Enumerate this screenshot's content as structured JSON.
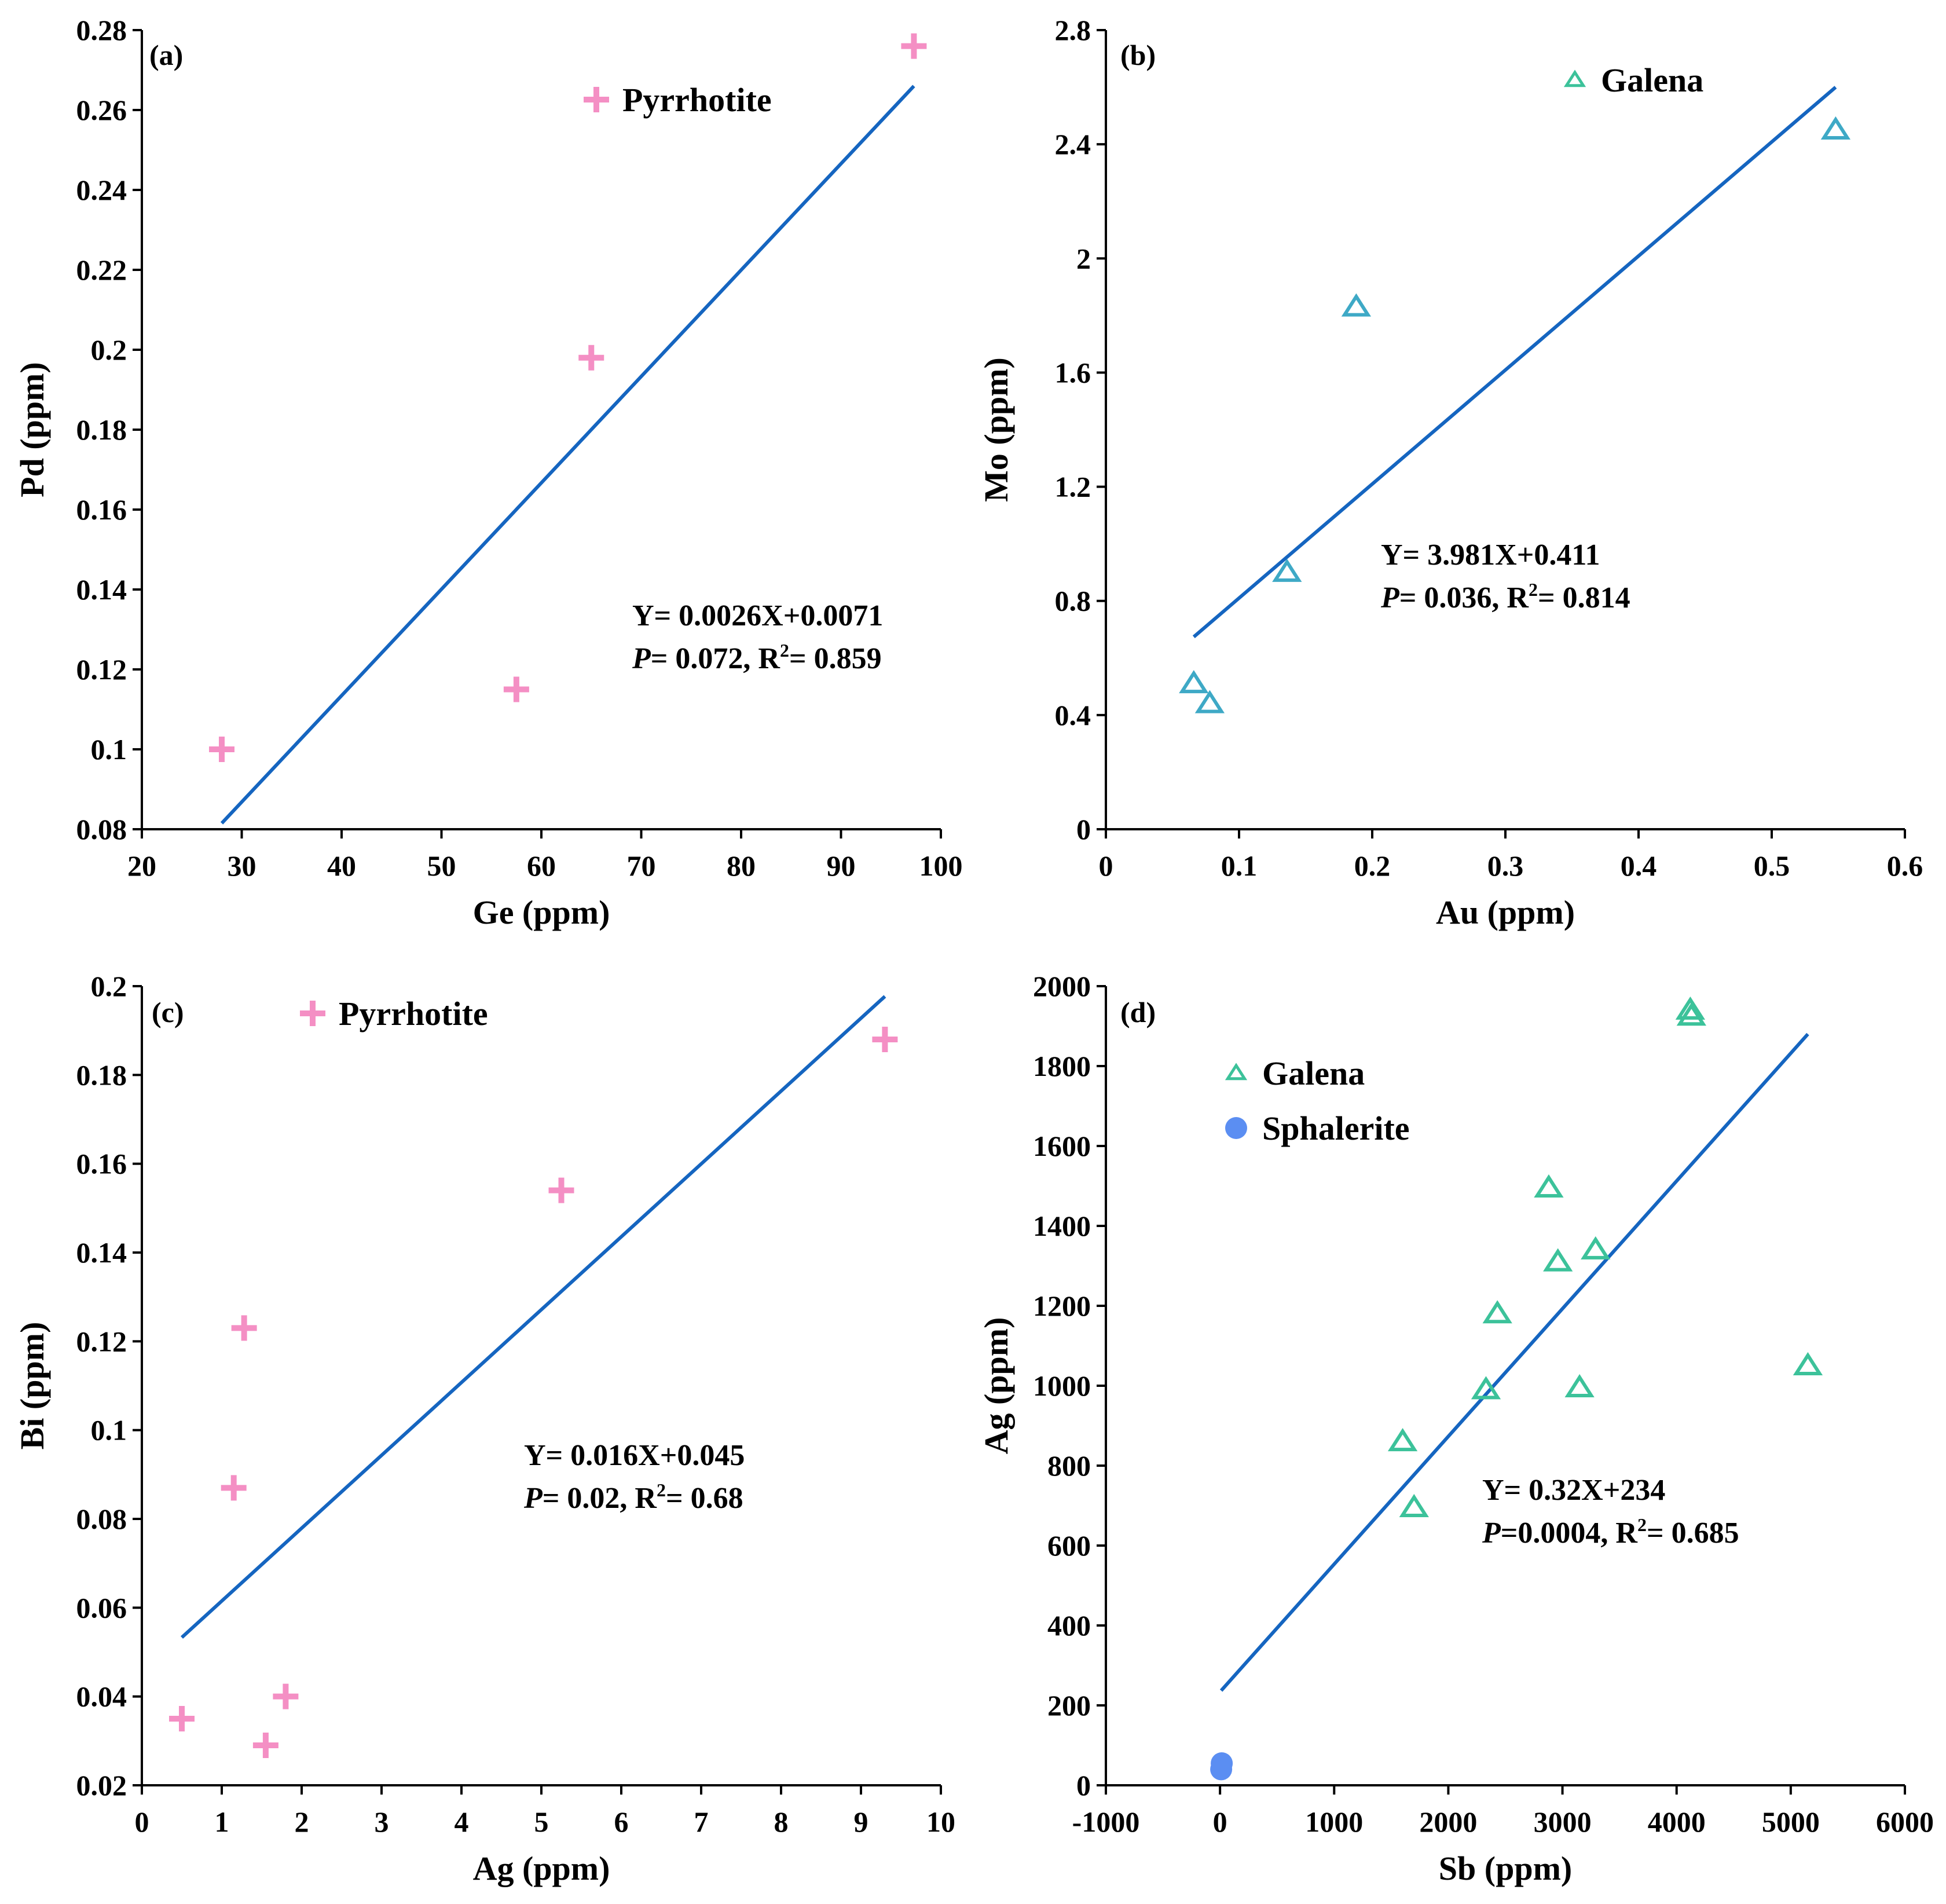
{
  "colors": {
    "pyrrhotite": "#f48fc4",
    "galena_legend": "#3cc29a",
    "galena_b": "#3ea9c6",
    "sphalerite": "#5b8ef2",
    "fit_line": "#1565c0",
    "axis": "#000000"
  },
  "chart_data": [
    {
      "type": "scatter",
      "panel_label": "(a)",
      "xlabel": "Ge (ppm)",
      "ylabel": "Pd (ppm)",
      "xlim": [
        20,
        100
      ],
      "ylim": [
        0.08,
        0.28
      ],
      "xticks": [
        "20",
        "30",
        "40",
        "50",
        "60",
        "70",
        "80",
        "90",
        "100"
      ],
      "yticks": [
        "0.08",
        "0.1",
        "0.12",
        "0.14",
        "0.16",
        "0.18",
        "0.2",
        "0.22",
        "0.24",
        "0.26",
        "0.28"
      ],
      "legend": [
        "Pyrrhotite"
      ],
      "series": [
        {
          "name": "Pyrrhotite",
          "marker": "plus",
          "color_key": "pyrrhotite",
          "x": [
            28,
            57.5,
            65,
            97.3
          ],
          "y": [
            0.1,
            0.115,
            0.198,
            0.276
          ]
        }
      ],
      "fit": {
        "x": [
          28,
          97.3
        ],
        "y": [
          0.0815,
          0.266
        ]
      },
      "equation": "Y= 0.0026X+0.0071",
      "stats": {
        "p_label": "P",
        "p_text": "= 0.072, R",
        "r2_sup": "2",
        "r2_text": "= 0.859"
      }
    },
    {
      "type": "scatter",
      "panel_label": "(b)",
      "xlabel": "Au (ppm)",
      "ylabel": "Mo (ppm)",
      "xlim": [
        0,
        0.6
      ],
      "ylim": [
        0,
        2.8
      ],
      "xticks": [
        "0",
        "0.1",
        "0.2",
        "0.3",
        "0.4",
        "0.5",
        "0.6"
      ],
      "yticks": [
        "0",
        "0.4",
        "0.8",
        "1.2",
        "1.6",
        "2",
        "2.4",
        "2.8"
      ],
      "legend": [
        "Galena"
      ],
      "series": [
        {
          "name": "Galena",
          "marker": "triangle",
          "color_key": "galena_b",
          "x": [
            0.066,
            0.078,
            0.136,
            0.188,
            0.548
          ],
          "y": [
            0.51,
            0.44,
            0.9,
            1.83,
            2.45
          ]
        }
      ],
      "fit": {
        "x": [
          0.066,
          0.548
        ],
        "y": [
          0.674,
          2.6
        ]
      },
      "equation": "Y= 3.981X+0.411",
      "stats": {
        "p_label": "P",
        "p_text": "= 0.036, R",
        "r2_sup": "2",
        "r2_text": "= 0.814"
      }
    },
    {
      "type": "scatter",
      "panel_label": "(c)",
      "xlabel": "Ag (ppm)",
      "ylabel": "Bi (ppm)",
      "xlim": [
        0,
        10
      ],
      "ylim": [
        0.02,
        0.2
      ],
      "xticks": [
        "0",
        "1",
        "2",
        "3",
        "4",
        "5",
        "6",
        "7",
        "8",
        "9",
        "10"
      ],
      "yticks": [
        "0.02",
        "0.04",
        "0.06",
        "0.08",
        "0.1",
        "0.12",
        "0.14",
        "0.16",
        "0.18",
        "0.2"
      ],
      "legend": [
        "Pyrrhotite"
      ],
      "series": [
        {
          "name": "Pyrrhotite",
          "marker": "plus",
          "color_key": "pyrrhotite",
          "x": [
            0.5,
            1.15,
            1.28,
            1.55,
            1.8,
            5.25,
            9.3
          ],
          "y": [
            0.035,
            0.087,
            0.123,
            0.029,
            0.04,
            0.154,
            0.188
          ]
        }
      ],
      "fit": {
        "x": [
          0.5,
          9.3
        ],
        "y": [
          0.0533,
          0.1977
        ]
      },
      "equation": "Y= 0.016X+0.045",
      "stats": {
        "p_label": "P",
        "p_text": "= 0.02, R",
        "r2_sup": "2",
        "r2_text": "= 0.68"
      }
    },
    {
      "type": "scatter",
      "panel_label": "(d)",
      "xlabel": "Sb (ppm)",
      "ylabel": "Ag (ppm)",
      "xlim": [
        -1000,
        6000
      ],
      "ylim": [
        0,
        2000
      ],
      "xticks": [
        "-1000",
        "0",
        "1000",
        "2000",
        "3000",
        "4000",
        "5000",
        "6000"
      ],
      "yticks": [
        "0",
        "200",
        "400",
        "600",
        "800",
        "1000",
        "1200",
        "1400",
        "1600",
        "1800",
        "2000"
      ],
      "legend": [
        "Galena",
        "Sphalerite"
      ],
      "series": [
        {
          "name": "Galena",
          "marker": "triangle",
          "color_key": "galena_legend",
          "x": [
            1600,
            1700,
            2330,
            2430,
            2880,
            2960,
            3150,
            3290,
            4120,
            4130,
            5150
          ],
          "y": [
            860,
            695,
            990,
            1180,
            1495,
            1310,
            995,
            1340,
            1940,
            1925,
            1050
          ]
        },
        {
          "name": "Sphalerite",
          "marker": "circle",
          "color_key": "sphalerite",
          "x": [
            10,
            15
          ],
          "y": [
            40,
            55
          ]
        }
      ],
      "fit": {
        "x": [
          10,
          5150
        ],
        "y": [
          237,
          1880
        ]
      },
      "equation": "Y= 0.32X+234",
      "stats": {
        "p_label": "P",
        "p_text": "=0.0004, R",
        "r2_sup": "2",
        "r2_text": "= 0.685"
      }
    }
  ]
}
